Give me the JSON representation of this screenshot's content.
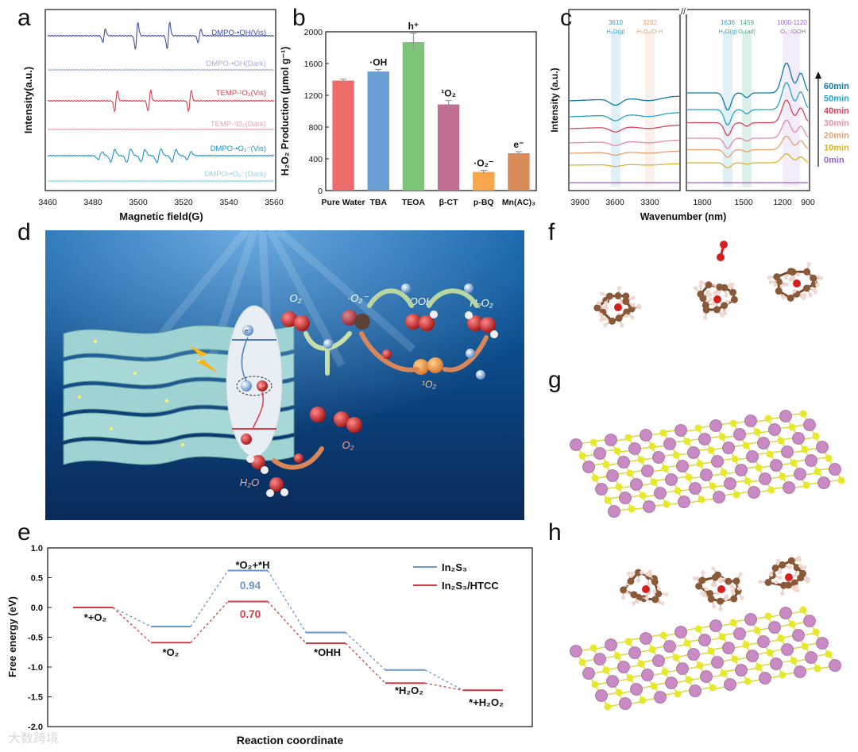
{
  "panels": {
    "a": "a",
    "b": "b",
    "c": "c",
    "d": "d",
    "e": "e",
    "f": "f",
    "g": "g",
    "h": "h"
  },
  "epr": {
    "ylabel": "Intensity(a.u.)",
    "xlabel": "Magnetic field(G)",
    "xticks": [
      "3460",
      "3480",
      "3500",
      "3520",
      "3540",
      "3560"
    ],
    "traces": [
      {
        "label": "DMPO-•OH(Vis)",
        "color": "#3f4f9e"
      },
      {
        "label": "DMPO-•OH(Dark)",
        "color": "#a7addb"
      },
      {
        "label": "TEMP-¹O₂(Vis)",
        "color": "#d3404f"
      },
      {
        "label": "TEMP-¹O₂(Dark)",
        "color": "#e9a3b6"
      },
      {
        "label": "DMPO-•O₂⁻(Vis)",
        "color": "#1f93c9"
      },
      {
        "label": "DMPO-•O₂⁻(Dark)",
        "color": "#8fd6ee"
      }
    ]
  },
  "chart_data": [
    {
      "type": "bar",
      "title": "",
      "ylabel": "H₂O₂ Production (μmol g⁻¹)",
      "xlabel": "",
      "ylim": [
        0,
        2000
      ],
      "yticks": [
        "0",
        "400",
        "800",
        "1200",
        "1600",
        "2000"
      ],
      "categories": [
        "Pure Water",
        "TBA",
        "TEOA",
        "β-CT",
        "p-BQ",
        "Mn(AC)₃"
      ],
      "values": [
        1385,
        1500,
        1870,
        1085,
        235,
        470
      ],
      "errors": [
        20,
        25,
        110,
        50,
        20,
        20
      ],
      "bar_colors": [
        "#ef6b6b",
        "#6a9fd6",
        "#7cc576",
        "#c06f93",
        "#f7a64a",
        "#d98c5a"
      ],
      "annotations": [
        "",
        "·OH",
        "h⁺",
        "¹O₂",
        "·O₂⁻",
        "e⁻"
      ]
    },
    {
      "type": "line",
      "title": "",
      "ylabel": "Intensity (a.u.)",
      "xlabel": "Wavenumber (nm)",
      "xticks": [
        "3900",
        "3600",
        "3300",
        "1800",
        "1500",
        "1200",
        "900"
      ],
      "time_labels": [
        {
          "label": "60min",
          "color": "#127aa8"
        },
        {
          "label": "50min",
          "color": "#2aa3c9"
        },
        {
          "label": "40min",
          "color": "#d9425a"
        },
        {
          "label": "30min",
          "color": "#e88aa6"
        },
        {
          "label": "20min",
          "color": "#e7a070"
        },
        {
          "label": "10min",
          "color": "#dbb22a"
        },
        {
          "label": "0min",
          "color": "#9a63d9"
        }
      ],
      "bands": [
        {
          "pos": "3610",
          "species": "H₂O(g)",
          "color": "#2aa3c9"
        },
        {
          "pos": "3282",
          "species": "H₂O₂/O-H",
          "color": "#e7a070"
        },
        {
          "pos": "1636",
          "species": "H₂O(g)",
          "color": "#2aa3c9"
        },
        {
          "pos": "1459",
          "species": "O₂(ad)",
          "color": "#3cae8c"
        },
        {
          "pos": "1000-1120",
          "species": "·O₂⁻/OOH",
          "color": "#9a63d9"
        }
      ]
    },
    {
      "type": "line",
      "title": "",
      "ylabel": "Free energy (eV)",
      "xlabel": "Reaction coordinate",
      "ylim": [
        -2.0,
        1.0
      ],
      "yticks": [
        "1.0",
        "0.5",
        "0.0",
        "-0.5",
        "-1.0",
        "-1.5",
        "-2.0"
      ],
      "steps": [
        "*+O₂",
        "*O₂",
        "*O₂+*H",
        "*OHH",
        "*H₂O₂",
        "*+H₂O₂"
      ],
      "series": [
        {
          "name": "In₂S₃",
          "color": "#6b96cc",
          "values": [
            0.0,
            -0.32,
            0.62,
            -0.42,
            -1.05,
            -1.39
          ]
        },
        {
          "name": "In₂S₃/HTCC",
          "color": "#d93b40",
          "values": [
            0.0,
            -0.59,
            0.1,
            -0.6,
            -1.27,
            -1.39
          ]
        }
      ],
      "barriers": [
        {
          "value": "0.94",
          "color": "#6b96cc"
        },
        {
          "value": "0.70",
          "color": "#d93b40"
        }
      ]
    }
  ],
  "scheme": {
    "labels": [
      "O₂",
      "·O₂⁻",
      "*OOH",
      "H₂O₂",
      "¹O₂",
      "O₂",
      "H₂O"
    ],
    "carriers": {
      "electron": "e⁻",
      "hole": "h⁺"
    }
  },
  "watermark": "大数跨境"
}
